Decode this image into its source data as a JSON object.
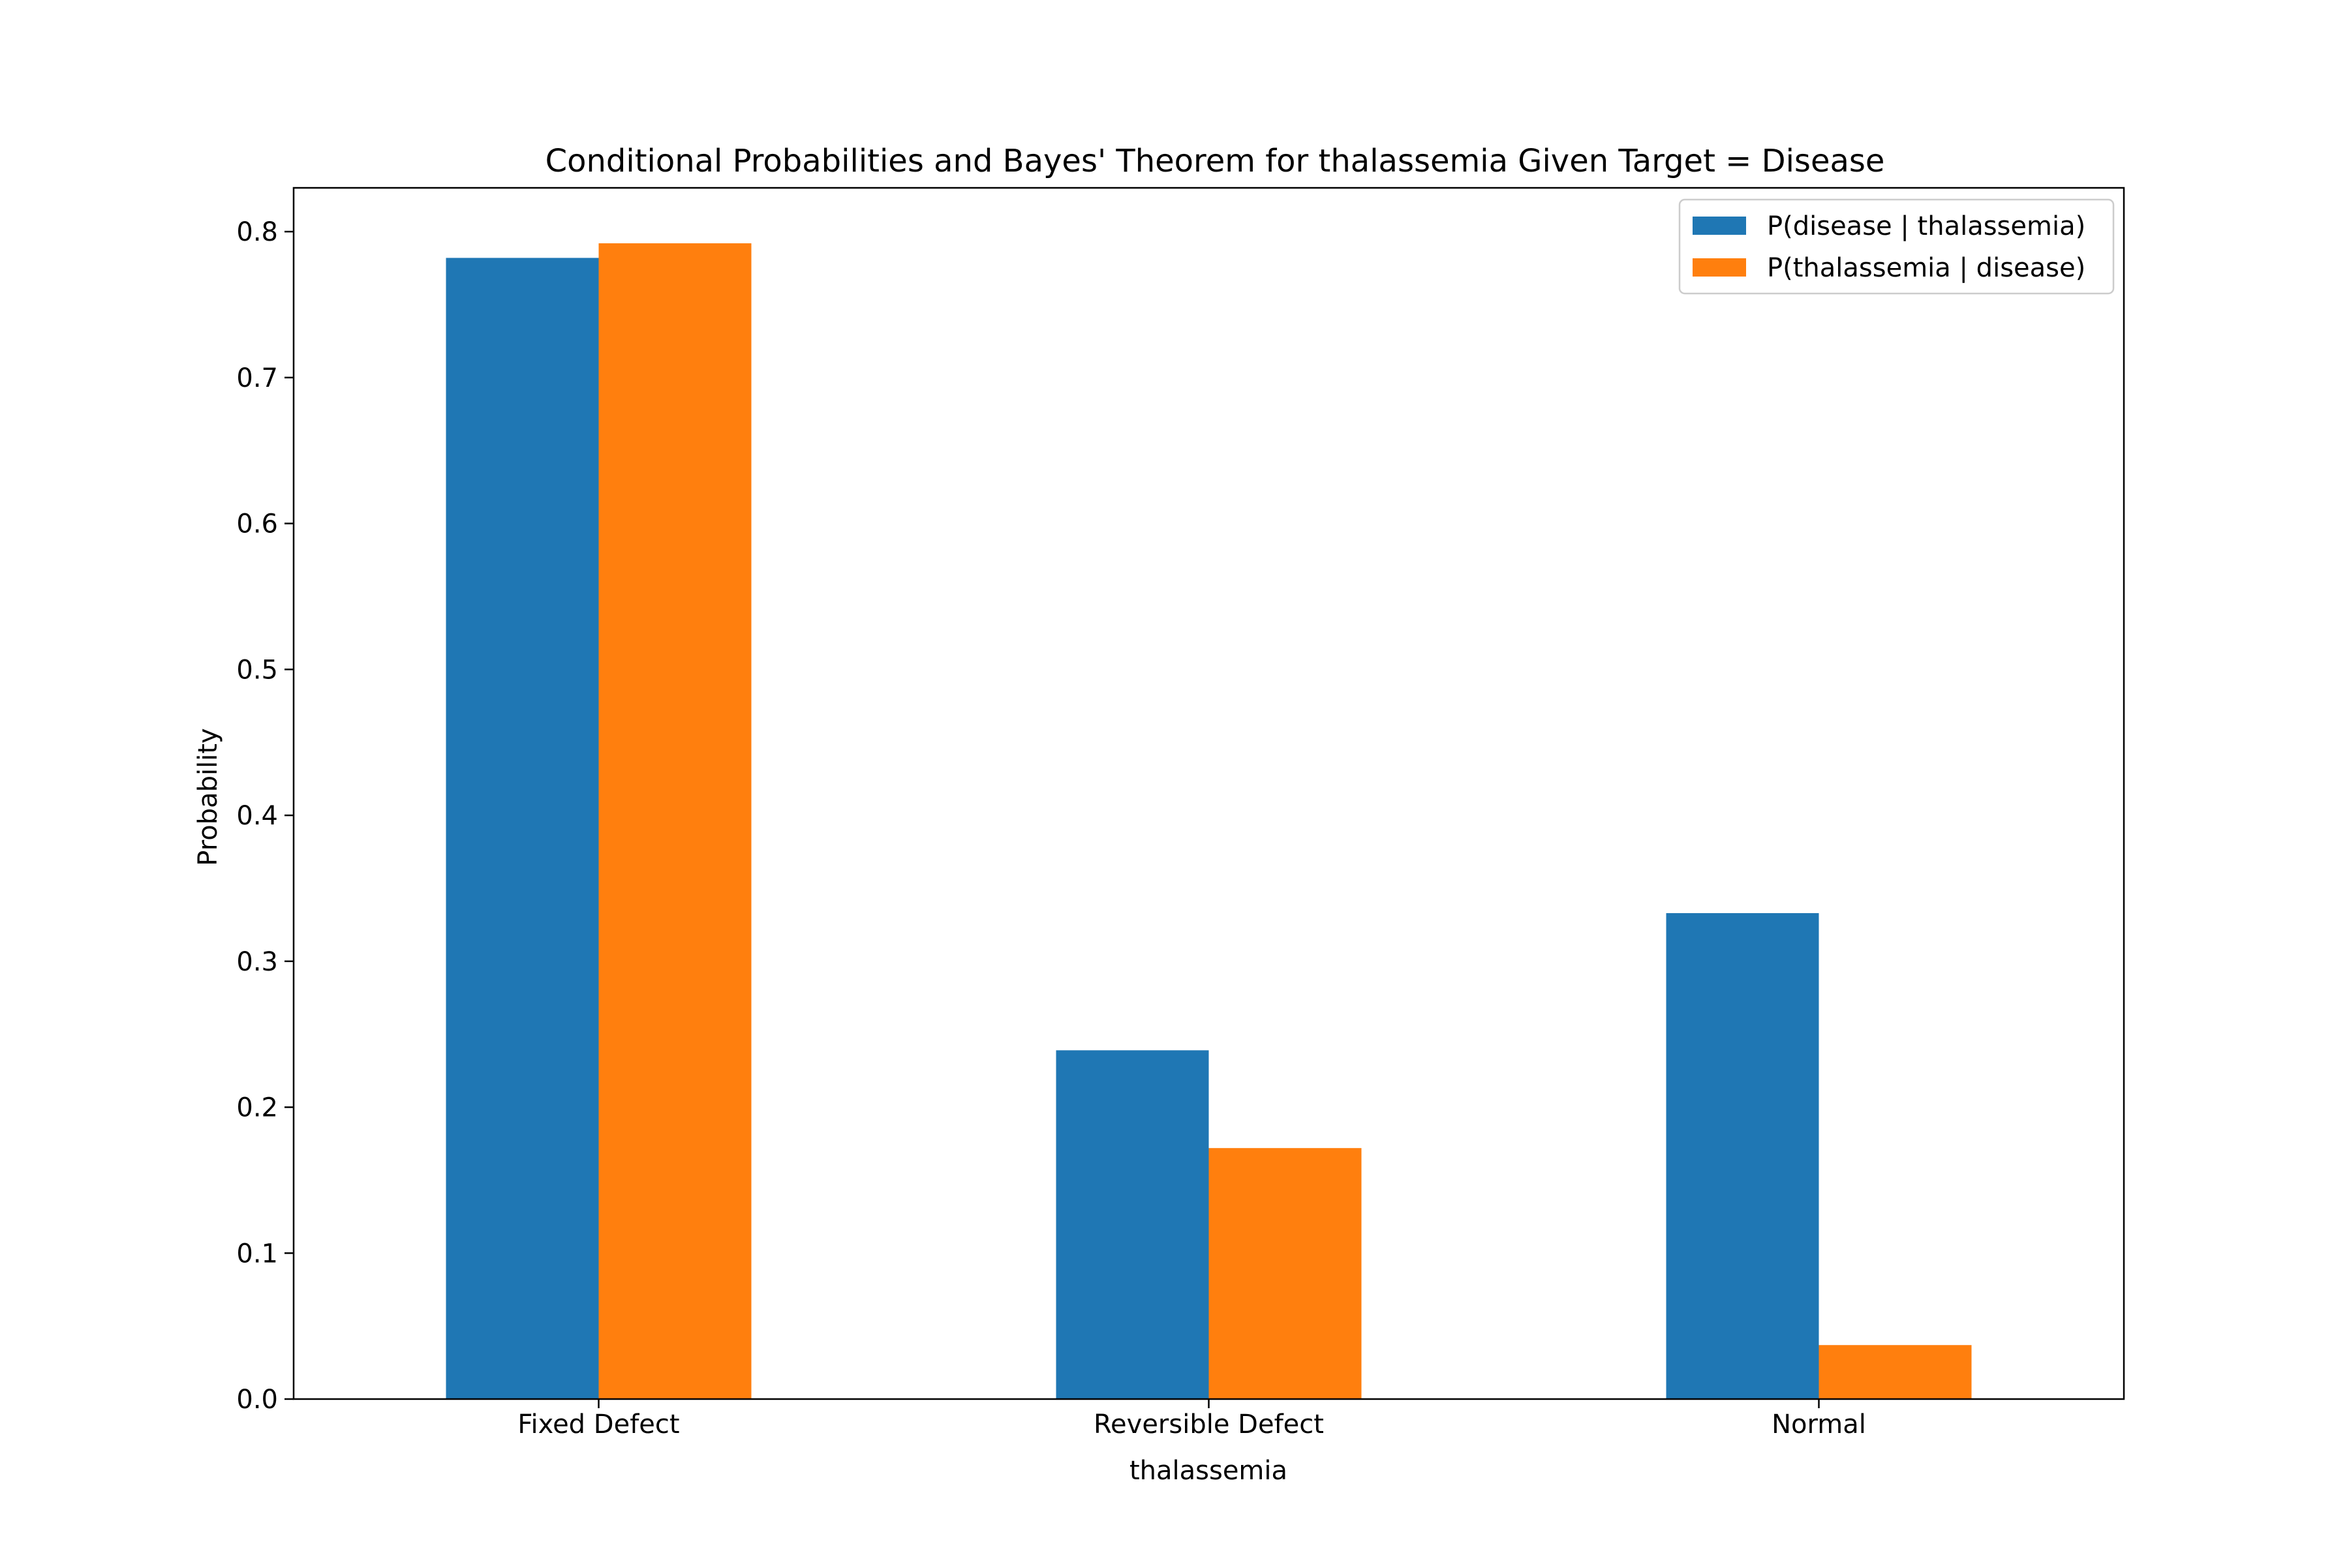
{
  "chart_data": {
    "type": "bar",
    "title": "Conditional Probabilities and Bayes' Theorem for thalassemia Given Target = Disease",
    "xlabel": "thalassemia",
    "ylabel": "Probability",
    "categories": [
      "Fixed Defect",
      "Reversible Defect",
      "Normal"
    ],
    "series": [
      {
        "name": "P(disease | thalassemia)",
        "values": [
          0.782,
          0.239,
          0.333
        ],
        "color": "#1f77b4"
      },
      {
        "name": "P(thalassemia | disease)",
        "values": [
          0.792,
          0.172,
          0.037
        ],
        "color": "#ff7f0e"
      }
    ],
    "ylim": [
      0,
      0.83
    ],
    "yticks": [
      "0.0",
      "0.1",
      "0.2",
      "0.3",
      "0.4",
      "0.5",
      "0.6",
      "0.7",
      "0.8"
    ],
    "grid": false,
    "legend_position": "top-right"
  }
}
